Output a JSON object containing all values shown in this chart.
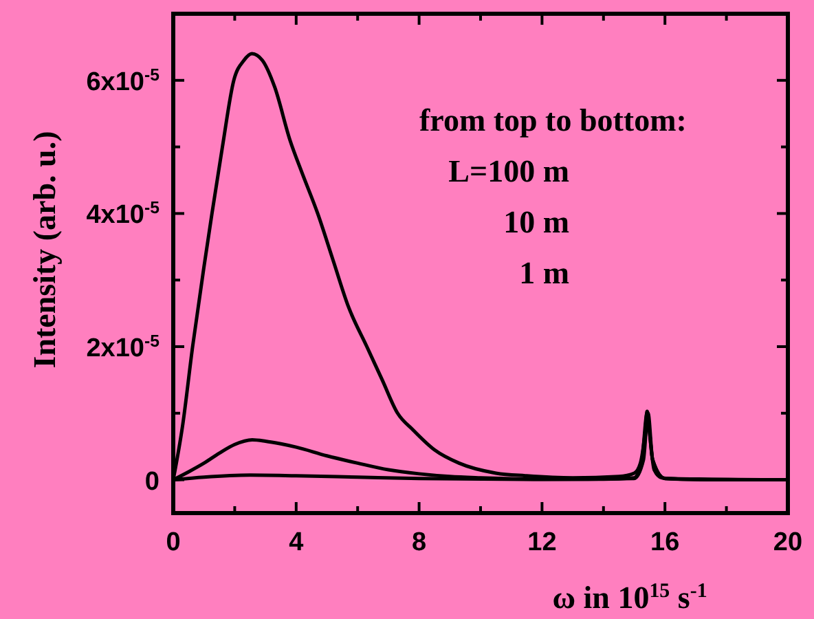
{
  "chart_data": {
    "type": "line",
    "xlabel": "ω in 10$^{15}$ s$^{-1}$",
    "ylabel": "Intensity (arb. u.)",
    "xlim": [
      0,
      20
    ],
    "xticks": [
      0,
      {
        "value": 2,
        "label": null
      },
      4,
      {
        "value": 6,
        "label": null
      },
      8,
      {
        "value": 10,
        "label": null
      },
      12,
      {
        "value": 14,
        "label": null
      },
      16,
      {
        "value": 18,
        "label": null
      },
      20
    ],
    "ylim": [
      -5e-06,
      7e-05
    ],
    "yticks": [
      {
        "value": 0,
        "label": "0"
      },
      {
        "value": 1e-05,
        "label": null
      },
      {
        "value": 2e-05,
        "label": "2x10$^{-5}$"
      },
      {
        "value": 3e-05,
        "label": null
      },
      {
        "value": 4e-05,
        "label": "4x10$^{-5}$"
      },
      {
        "value": 5e-05,
        "label": null
      },
      {
        "value": 6e-05,
        "label": "6x10$^{-5}$"
      }
    ],
    "grid": false,
    "marker": "none",
    "line_style": "solid",
    "annotations": [
      "from top to bottom:",
      "L=100 m",
      "10 m",
      "1 m"
    ],
    "series": [
      {
        "color": "#000000",
        "x": [
          0,
          0.3,
          0.63,
          1.0,
          1.26,
          1.6,
          1.97,
          2.3,
          2.56,
          2.9,
          3.3,
          3.8,
          4.2,
          4.7,
          5.2,
          5.7,
          6.3,
          6.8,
          7.3,
          7.8,
          8.5,
          9.3,
          10.5,
          11.5,
          13,
          14.5,
          15.0,
          15.2,
          15.35,
          15.42,
          15.5,
          15.65,
          15.9,
          16.5,
          18,
          20
        ],
        "values": [
          0,
          8e-06,
          2e-05,
          3.2e-05,
          4e-05,
          5e-05,
          6e-05,
          6.3e-05,
          6.4e-05,
          6.3e-05,
          5.9e-05,
          5.1e-05,
          4.6e-05,
          4e-05,
          3.3e-05,
          2.6e-05,
          2e-05,
          1.5e-05,
          1e-05,
          7.5e-06,
          4.5e-06,
          2.5e-06,
          1e-06,
          6e-07,
          3e-07,
          5e-07,
          1e-06,
          2.5e-06,
          7e-06,
          1.03e-05,
          7e-06,
          1.5e-06,
          3e-07,
          1e-07,
          0,
          0
        ]
      },
      {
        "color": "#000000",
        "x": [
          0,
          0.5,
          1,
          1.5,
          2,
          2.57,
          3,
          3.5,
          4,
          5,
          6,
          7,
          8,
          9,
          10,
          12,
          14,
          15,
          15.25,
          15.42,
          15.6,
          16,
          18,
          20
        ],
        "values": [
          0,
          1.2e-06,
          2.5e-06,
          4e-06,
          5.3e-06,
          6e-06,
          5.8e-06,
          5.4e-06,
          4.9e-06,
          3.6e-06,
          2.5e-06,
          1.5e-06,
          9e-07,
          5e-07,
          3e-07,
          1e-07,
          1e-07,
          3e-07,
          3e-06,
          1e-05,
          3e-06,
          2e-07,
          0,
          0
        ]
      },
      {
        "color": "#000000",
        "x": [
          0,
          1,
          2.5,
          4,
          6,
          8,
          12,
          15,
          15.3,
          15.45,
          15.6,
          16,
          20
        ],
        "values": [
          0,
          4e-07,
          7e-07,
          6e-07,
          4e-07,
          2e-07,
          5e-08,
          2e-07,
          3e-06,
          1e-05,
          3e-06,
          2e-07,
          0
        ]
      }
    ]
  }
}
